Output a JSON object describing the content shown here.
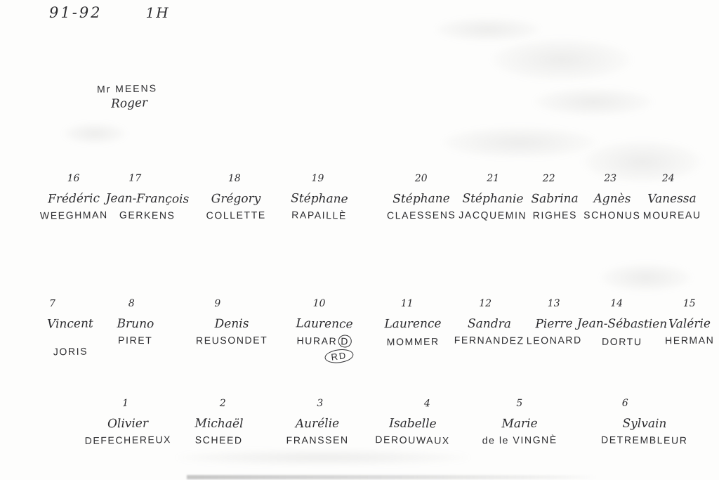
{
  "document": {
    "school_year": "91-92",
    "class_label": "1H",
    "teacher": {
      "name_line": "Mr MEENS",
      "first_name": "Roger"
    }
  },
  "colors": {
    "ink": "#2d2d30",
    "paper": "#fdfdfc"
  },
  "rows": [
    {
      "container": "back-row",
      "students": [
        {
          "number": "16",
          "first_name": "Frédéric",
          "last_name": "WEEGHMAN"
        },
        {
          "number": "17",
          "first_name": "Jean-François",
          "last_name": "GERKENS"
        },
        {
          "number": "18",
          "first_name": "Grégory",
          "last_name": "COLLETTE"
        },
        {
          "number": "19",
          "first_name": "Stéphane",
          "last_name": "RAPAILLÈ"
        },
        {
          "number": "20",
          "first_name": "Stéphane",
          "last_name": "CLAESSENS"
        },
        {
          "number": "21",
          "first_name": "Stéphanie",
          "last_name": "JACQUEMIN"
        },
        {
          "number": "22",
          "first_name": "Sabrina",
          "last_name": "RIGHES"
        },
        {
          "number": "23",
          "first_name": "Agnès",
          "last_name": "SCHONUS"
        },
        {
          "number": "24",
          "first_name": "Vanessa",
          "last_name": "MOUREAU"
        }
      ]
    },
    {
      "container": "middle-row",
      "students": [
        {
          "number": "7",
          "first_name": "Vincent",
          "last_name": "JORIS"
        },
        {
          "number": "8",
          "first_name": "Bruno",
          "last_name": "PIRET"
        },
        {
          "number": "9",
          "first_name": "Denis",
          "last_name": "REUSONDET"
        },
        {
          "number": "10",
          "first_name": "Laurence",
          "last_name": "HURARD",
          "circle_last_letter": true,
          "annotation": "RD"
        },
        {
          "number": "11",
          "first_name": "Laurence",
          "last_name": "MOMMER"
        },
        {
          "number": "12",
          "first_name": "Sandra",
          "last_name": "FERNANDEZ"
        },
        {
          "number": "13",
          "first_name": "Pierre",
          "last_name": "LEONARD"
        },
        {
          "number": "14",
          "first_name": "Jean-Sébastien",
          "last_name": "DORTU"
        },
        {
          "number": "15",
          "first_name": "Valérie",
          "last_name": "HERMAN"
        }
      ]
    },
    {
      "container": "front-row",
      "students": [
        {
          "number": "1",
          "first_name": "Olivier",
          "last_name": "DEFECHEREUX"
        },
        {
          "number": "2",
          "first_name": "Michaël",
          "last_name": "SCHEED"
        },
        {
          "number": "3",
          "first_name": "Aurélie",
          "last_name": "FRANSSEN"
        },
        {
          "number": "4",
          "first_name": "Isabelle",
          "last_name": "DEROUWAUX"
        },
        {
          "number": "5",
          "first_name": "Marie",
          "last_name": "de le VINGNÈ"
        },
        {
          "number": "6",
          "first_name": "Sylvain",
          "last_name": "DETREMBLEUR"
        }
      ]
    }
  ]
}
